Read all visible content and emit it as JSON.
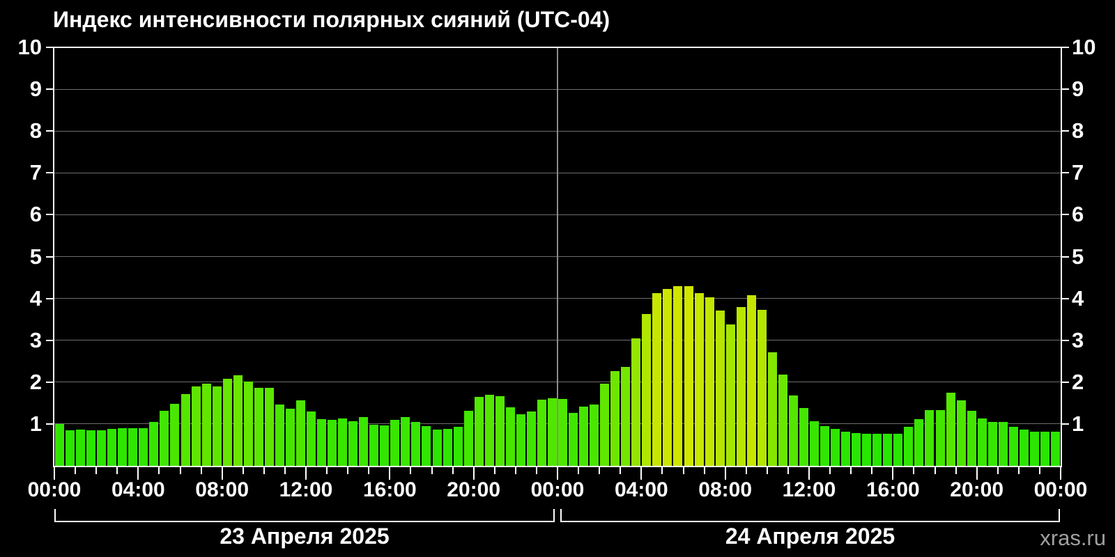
{
  "title": "Индекс интенсивности полярных сияний (UTC-04)",
  "watermark": "xras.ru",
  "chart_data": {
    "type": "bar",
    "title": "Индекс интенсивности полярных сияний (UTC-04)",
    "timezone": "UTC-04",
    "bar_interval_minutes": 30,
    "x_axis": {
      "span_hours": 48,
      "minor_tick_every_hours": 1,
      "major_tick_every_hours": 4,
      "tick_labels": [
        "00:00",
        "04:00",
        "08:00",
        "12:00",
        "16:00",
        "20:00",
        "00:00",
        "04:00",
        "08:00",
        "12:00",
        "16:00",
        "20:00",
        "00:00"
      ]
    },
    "y_axis": {
      "min": 0,
      "max": 10,
      "ticks": [
        1,
        2,
        3,
        4,
        5,
        6,
        7,
        8,
        9,
        10
      ],
      "mirrored_right_labels": true,
      "grid": true
    },
    "days": [
      {
        "label": "23 Апреля 2025",
        "start_hour": 0,
        "end_hour": 24
      },
      {
        "label": "24 Апреля 2025",
        "start_hour": 24,
        "end_hour": 48
      }
    ],
    "series": [
      {
        "name": "Индекс интенсивности полярных сияний",
        "values": [
          1.0,
          0.85,
          0.87,
          0.85,
          0.85,
          0.88,
          0.9,
          0.9,
          0.9,
          1.05,
          1.31,
          1.48,
          1.72,
          1.9,
          1.96,
          1.9,
          2.08,
          2.16,
          2.02,
          1.87,
          1.87,
          1.46,
          1.36,
          1.57,
          1.3,
          1.12,
          1.1,
          1.13,
          1.07,
          1.16,
          0.99,
          0.97,
          1.1,
          1.17,
          1.05,
          0.95,
          0.87,
          0.89,
          0.93,
          1.31,
          1.64,
          1.7,
          1.66,
          1.39,
          1.23,
          1.29,
          1.58,
          1.62,
          1.59,
          1.26,
          1.41,
          1.47,
          1.97,
          2.27,
          2.37,
          3.04,
          3.63,
          4.13,
          4.22,
          4.29,
          4.29,
          4.12,
          4.03,
          3.71,
          3.38,
          3.79,
          4.08,
          3.72,
          2.72,
          2.18,
          1.68,
          1.38,
          1.06,
          0.95,
          0.89,
          0.81,
          0.79,
          0.77,
          0.77,
          0.77,
          0.77,
          0.93,
          1.12,
          1.33,
          1.33,
          1.74,
          1.57,
          1.31,
          1.13,
          1.05,
          1.04,
          0.94,
          0.87,
          0.81,
          0.81,
          0.82
        ]
      }
    ],
    "colors": {
      "background": "#000000",
      "axis": "#ffffff",
      "grid": "#6e6e6e",
      "day_separator": "#8c8c8c",
      "bar_low_value": "#1de400",
      "bar_high_value": "#d6ee00",
      "tick_label": "#ffffff",
      "watermark": "#a0a0a0"
    }
  }
}
